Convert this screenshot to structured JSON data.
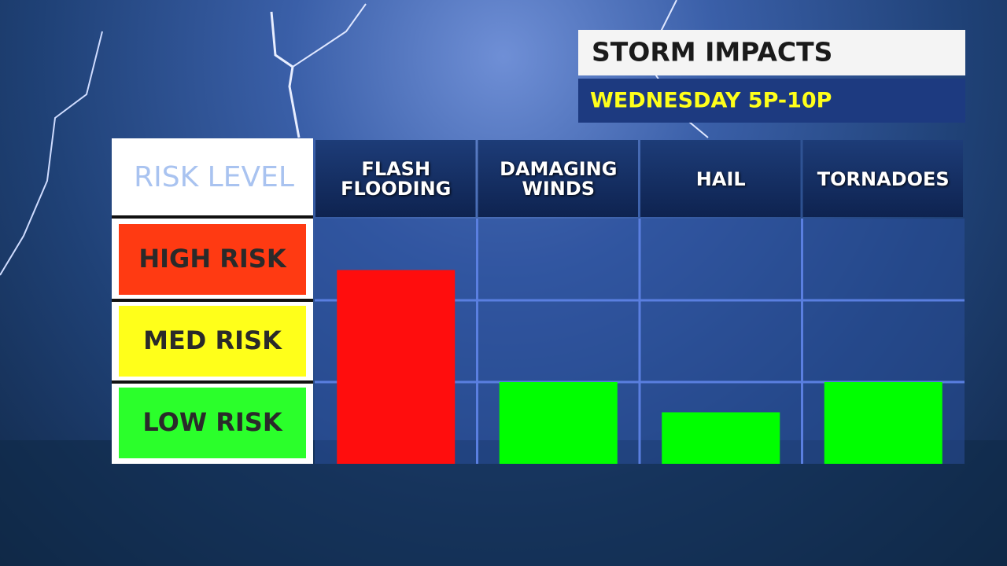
{
  "chart_data": {
    "type": "bar",
    "title": "STORM IMPACTS",
    "subtitle": "WEDNESDAY 5P-10P",
    "y_label": "RISK LEVEL",
    "categories": [
      "FLASH FLOODING",
      "DAMAGING WINDS",
      "HAIL",
      "TORNADOES"
    ],
    "values": [
      2.37,
      1.0,
      0.63,
      1.0
    ],
    "colors": [
      "#ff0d0d",
      "#00ff00",
      "#00ff00",
      "#00ff00"
    ],
    "ylim": [
      0,
      3
    ],
    "yticks": [
      {
        "value": 0.5,
        "label": "LOW RISK"
      },
      {
        "value": 1.5,
        "label": "MED RISK"
      },
      {
        "value": 2.5,
        "label": "HIGH RISK"
      }
    ],
    "ytick_colors": [
      "#2bff2b",
      "#ffff1a",
      "#ff3a12"
    ],
    "grid": true
  }
}
